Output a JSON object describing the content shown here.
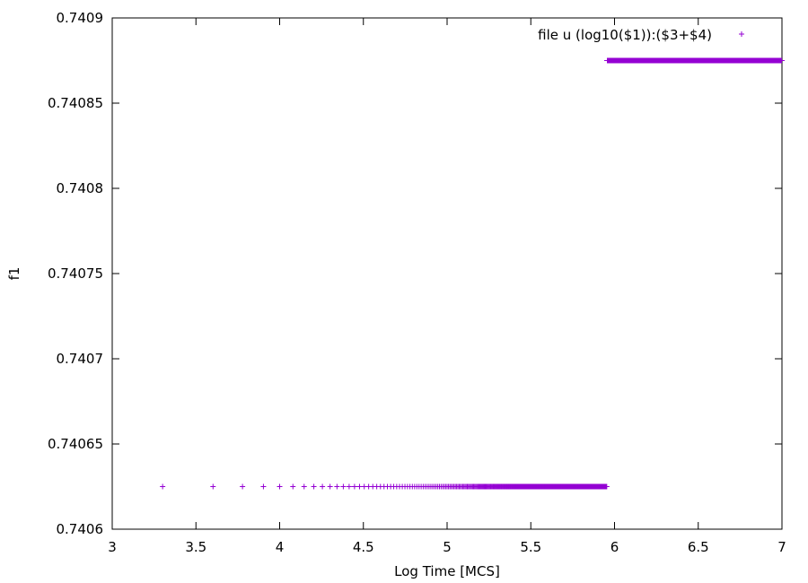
{
  "chart_data": {
    "type": "scatter",
    "title": "",
    "xlabel": "Log Time [MCS]",
    "ylabel": "f1",
    "xlim": [
      3,
      7
    ],
    "ylim": [
      0.7406,
      0.7409
    ],
    "xticks": [
      3,
      3.5,
      4,
      4.5,
      5,
      5.5,
      6,
      6.5,
      7
    ],
    "xtick_labels": [
      "3",
      "3.5",
      "4",
      "4.5",
      "5",
      "5.5",
      "6",
      "6.5",
      "7"
    ],
    "yticks": [
      0.7406,
      0.74065,
      0.7407,
      0.74075,
      0.7408,
      0.74085,
      0.7409
    ],
    "ytick_labels": [
      "0.7406",
      "0.74065",
      "0.7407",
      "0.74075",
      "0.7408",
      "0.74085",
      "0.7409"
    ],
    "grid": false,
    "legend": {
      "position": "top-right",
      "entries": [
        {
          "label": "file u (log10($1)):($3+$4)",
          "marker": "+"
        }
      ]
    },
    "series": [
      {
        "name": "file u (log10($1)):($3+$4)",
        "color": "#9400d3",
        "marker": "+",
        "segments": [
          {
            "x_from": 3.301,
            "x_to": 5.954,
            "y": 0.740625
          },
          {
            "x_from": 5.9545,
            "x_to": 7.0,
            "y": 0.740875
          }
        ]
      }
    ]
  }
}
